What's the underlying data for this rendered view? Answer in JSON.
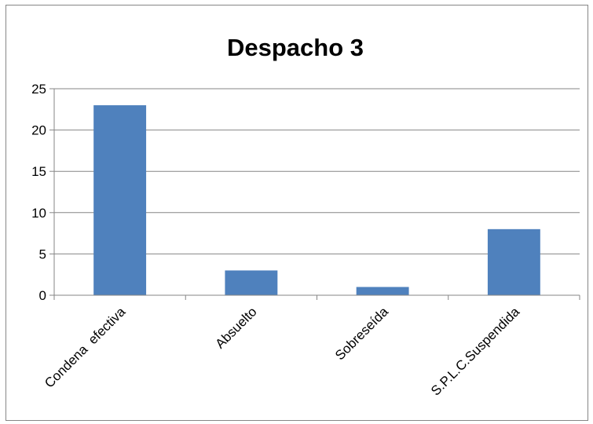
{
  "chart_data": {
    "type": "bar",
    "title": "Despacho 3",
    "categories": [
      "Condena  efectiva",
      "Absuelto",
      "Sobreseída",
      "S.P.L.C.Suspendida"
    ],
    "values": [
      23,
      3,
      1,
      8
    ],
    "ylim": [
      0,
      25
    ],
    "yticks": [
      "0",
      "5",
      "10",
      "15",
      "20",
      "25"
    ],
    "grid": true,
    "legend": "none",
    "bar_color": "#4f81bd"
  }
}
